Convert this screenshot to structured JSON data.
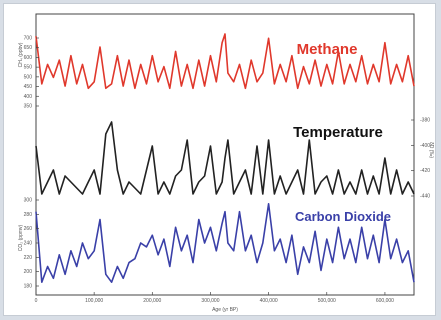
{
  "chart_data": [
    {
      "type": "line",
      "name": "methane-panel",
      "label": "Methane",
      "color": "#e0382c",
      "ylabel": "CH₄ (ppbv)",
      "yticks": [
        "700",
        "650",
        "600",
        "550",
        "500",
        "450",
        "400",
        "350"
      ],
      "series": [
        {
          "name": "Methane",
          "x": [
            0,
            10000,
            20000,
            30000,
            40000,
            50000,
            60000,
            70000,
            80000,
            90000,
            100000,
            110000,
            120000,
            130000,
            140000,
            150000,
            160000,
            170000,
            180000,
            190000,
            200000,
            210000,
            220000,
            230000,
            240000,
            250000,
            260000,
            270000,
            280000,
            290000,
            300000,
            310000,
            320000,
            325000,
            330000,
            340000,
            350000,
            360000,
            370000,
            380000,
            390000,
            400000,
            410000,
            420000,
            430000,
            440000,
            450000,
            460000,
            470000,
            480000,
            490000,
            500000,
            510000,
            520000,
            530000,
            540000,
            550000,
            560000,
            570000,
            580000,
            590000,
            600000,
            610000,
            620000,
            630000,
            640000,
            650000
          ],
          "y": [
            690,
            470,
            560,
            500,
            580,
            460,
            600,
            470,
            560,
            450,
            480,
            640,
            450,
            470,
            600,
            460,
            580,
            450,
            560,
            470,
            600,
            480,
            550,
            450,
            620,
            460,
            560,
            450,
            580,
            460,
            600,
            480,
            660,
            700,
            520,
            480,
            560,
            450,
            580,
            480,
            520,
            680,
            470,
            560,
            480,
            600,
            450,
            550,
            470,
            580,
            460,
            560,
            470,
            620,
            470,
            560,
            480,
            600,
            470,
            560,
            480,
            660,
            470,
            560,
            480,
            600,
            460
          ]
        }
      ]
    },
    {
      "type": "line",
      "name": "temperature-panel",
      "label": "Temperature",
      "color": "#222222",
      "ylabel": "δD (‰)",
      "yticks": [
        "-380",
        "-400",
        "-420",
        "-440"
      ],
      "series": [
        {
          "name": "Temperature",
          "x": [
            0,
            10000,
            20000,
            30000,
            40000,
            50000,
            60000,
            70000,
            80000,
            90000,
            100000,
            110000,
            120000,
            130000,
            140000,
            150000,
            160000,
            170000,
            180000,
            190000,
            200000,
            210000,
            220000,
            230000,
            240000,
            250000,
            260000,
            270000,
            280000,
            290000,
            300000,
            310000,
            320000,
            325000,
            330000,
            340000,
            350000,
            360000,
            370000,
            380000,
            390000,
            400000,
            410000,
            420000,
            430000,
            440000,
            450000,
            460000,
            470000,
            480000,
            490000,
            500000,
            510000,
            520000,
            530000,
            540000,
            550000,
            560000,
            570000,
            580000,
            590000,
            600000,
            610000,
            620000,
            630000,
            640000,
            650000
          ],
          "y": [
            -400,
            -440,
            -430,
            -420,
            -440,
            -425,
            -430,
            -435,
            -440,
            -430,
            -420,
            -440,
            -390,
            -380,
            -420,
            -440,
            -430,
            -435,
            -440,
            -420,
            -400,
            -440,
            -430,
            -440,
            -425,
            -420,
            -395,
            -440,
            -430,
            -425,
            -400,
            -440,
            -430,
            -410,
            -395,
            -440,
            -430,
            -420,
            -440,
            -400,
            -440,
            -395,
            -440,
            -425,
            -440,
            -430,
            -420,
            -440,
            -395,
            -440,
            -430,
            -425,
            -440,
            -420,
            -440,
            -430,
            -440,
            -420,
            -440,
            -425,
            -440,
            -410,
            -440,
            -420,
            -440,
            -430,
            -440
          ]
        }
      ]
    },
    {
      "type": "line",
      "name": "co2-panel",
      "label": "Carbon Dioxide",
      "color": "#3a40a8",
      "ylabel": "CO₂ (ppmv)",
      "yticks": [
        "300",
        "280",
        "260",
        "240",
        "220",
        "200",
        "180"
      ],
      "xlabel": "Age (yr BP)",
      "xticks": [
        "0",
        "100,000",
        "200,000",
        "300,000",
        "400,000",
        "500,000",
        "600,000"
      ],
      "series": [
        {
          "name": "Carbon Dioxide",
          "x": [
            0,
            10000,
            20000,
            30000,
            40000,
            50000,
            60000,
            70000,
            80000,
            90000,
            100000,
            110000,
            120000,
            130000,
            140000,
            150000,
            160000,
            170000,
            180000,
            190000,
            200000,
            210000,
            220000,
            230000,
            240000,
            250000,
            260000,
            270000,
            280000,
            290000,
            300000,
            310000,
            320000,
            325000,
            330000,
            340000,
            350000,
            360000,
            370000,
            380000,
            390000,
            400000,
            410000,
            420000,
            430000,
            440000,
            450000,
            460000,
            470000,
            480000,
            490000,
            500000,
            510000,
            520000,
            530000,
            540000,
            550000,
            560000,
            570000,
            580000,
            590000,
            600000,
            610000,
            620000,
            630000,
            640000,
            650000
          ],
          "y": [
            280,
            190,
            210,
            195,
            225,
            200,
            230,
            210,
            240,
            220,
            230,
            270,
            200,
            190,
            210,
            195,
            215,
            220,
            240,
            235,
            250,
            225,
            245,
            210,
            260,
            230,
            250,
            215,
            270,
            240,
            260,
            230,
            265,
            280,
            240,
            230,
            280,
            230,
            250,
            215,
            240,
            290,
            230,
            245,
            215,
            250,
            200,
            235,
            215,
            255,
            205,
            245,
            215,
            260,
            220,
            245,
            215,
            260,
            220,
            250,
            215,
            270,
            220,
            245,
            215,
            230,
            190
          ]
        }
      ]
    }
  ]
}
